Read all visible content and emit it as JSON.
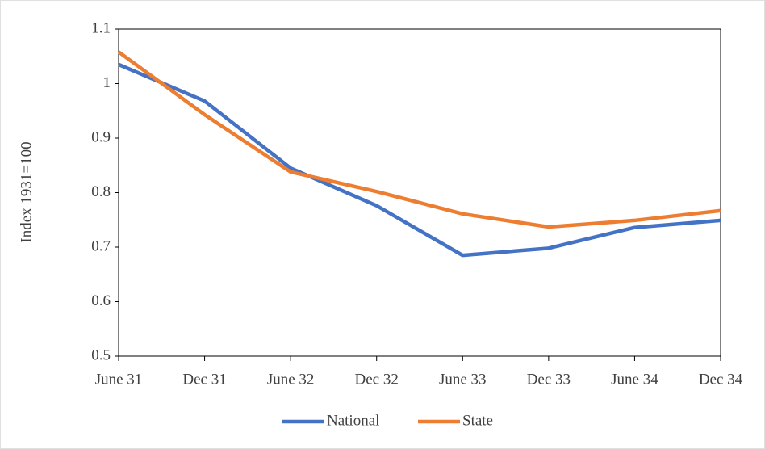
{
  "chart_data": {
    "type": "line",
    "y_label": "Index 1931=100",
    "categories": [
      "June 31",
      "Dec 31",
      "June 32",
      "Dec 32",
      "June 33",
      "Dec 33",
      "June 34",
      "Dec 34"
    ],
    "series": [
      {
        "name": "National",
        "color": "#4472c4",
        "values": [
          1.035,
          0.968,
          0.845,
          0.776,
          0.685,
          0.698,
          0.736,
          0.749
        ]
      },
      {
        "name": "State",
        "color": "#ed7d31",
        "values": [
          1.058,
          0.943,
          0.838,
          0.802,
          0.761,
          0.737,
          0.749,
          0.767
        ]
      }
    ],
    "ylim": [
      0.5,
      1.1
    ],
    "yticks": [
      0.5,
      0.6,
      0.7,
      0.8,
      0.9,
      1,
      1.1
    ],
    "grid": false,
    "legend": "bottom"
  }
}
